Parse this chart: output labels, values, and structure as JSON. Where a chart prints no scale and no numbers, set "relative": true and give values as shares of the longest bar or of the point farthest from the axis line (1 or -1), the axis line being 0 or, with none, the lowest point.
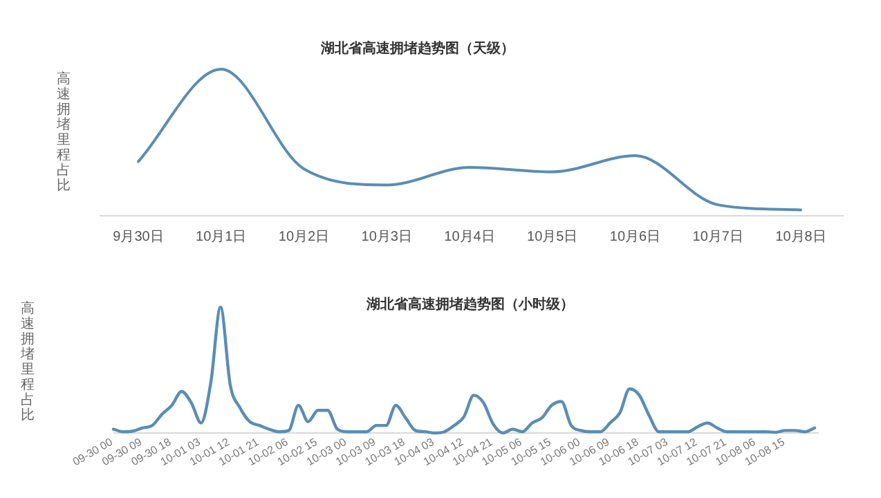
{
  "chart_data": [
    {
      "type": "line",
      "title": "湖北省高速拥堵趋势图（天级）",
      "ylabel": "高速拥堵里程占比",
      "relative": true,
      "categories": [
        "9月30日",
        "10月1日",
        "10月2日",
        "10月3日",
        "10月4日",
        "10月5日",
        "10月6日",
        "10月7日",
        "10月8日"
      ],
      "series": [
        {
          "color": "#5a8db5",
          "values": [
            0.37,
            1,
            0.32,
            0.21,
            0.33,
            0.3,
            0.41,
            0.075,
            0.04
          ]
        }
      ]
    },
    {
      "type": "line",
      "title": "湖北省高速拥堵趋势图（小时级）",
      "ylabel": "高速拥堵里程占比",
      "relative": true,
      "categories": [
        "09-30 00",
        null,
        null,
        "09-30 09",
        null,
        null,
        "09-30 18",
        null,
        null,
        "10-01 03",
        null,
        null,
        "10-01 12",
        null,
        null,
        "10-01 21",
        null,
        null,
        "10-02 06",
        null,
        null,
        "10-02 15",
        null,
        null,
        "10-03 00",
        null,
        null,
        "10-03 09",
        null,
        null,
        "10-03 18",
        null,
        null,
        "10-04 03",
        null,
        null,
        "10-04 12",
        null,
        null,
        "10-04 21",
        null,
        null,
        "10-05 06",
        null,
        null,
        "10-05 15",
        null,
        null,
        "10-06 00",
        null,
        null,
        "10-06 09",
        null,
        null,
        "10-06 18",
        null,
        null,
        "10-07 03",
        null,
        null,
        "10-07 12",
        null,
        null,
        "10-07 21",
        null,
        null,
        "10-08 06",
        null,
        null,
        "10-08 15",
        null,
        null,
        null
      ],
      "series": [
        {
          "color": "#5a8db5",
          "values": [
            0.03,
            0.01,
            0.015,
            0.04,
            0.06,
            0.15,
            0.22,
            0.33,
            0.24,
            0.08,
            0.4,
            1,
            0.38,
            0.2,
            0.09,
            0.06,
            0.03,
            0.01,
            0.02,
            0.22,
            0.09,
            0.18,
            0.18,
            0.03,
            0.01,
            0.01,
            0.01,
            0.06,
            0.06,
            0.22,
            0.12,
            0.02,
            0.01,
            0,
            0.01,
            0.06,
            0.13,
            0.3,
            0.24,
            0.07,
            0,
            0.03,
            0.01,
            0.08,
            0.12,
            0.22,
            0.25,
            0.06,
            0.02,
            0.01,
            0.01,
            0.08,
            0.16,
            0.35,
            0.3,
            0.14,
            0.01,
            0.01,
            0.01,
            0.01,
            0.05,
            0.08,
            0.04,
            0.01,
            0.01,
            0.01,
            0.01,
            0.01,
            0.005,
            0.02,
            0.02,
            0.01,
            0.04
          ]
        }
      ]
    }
  ]
}
